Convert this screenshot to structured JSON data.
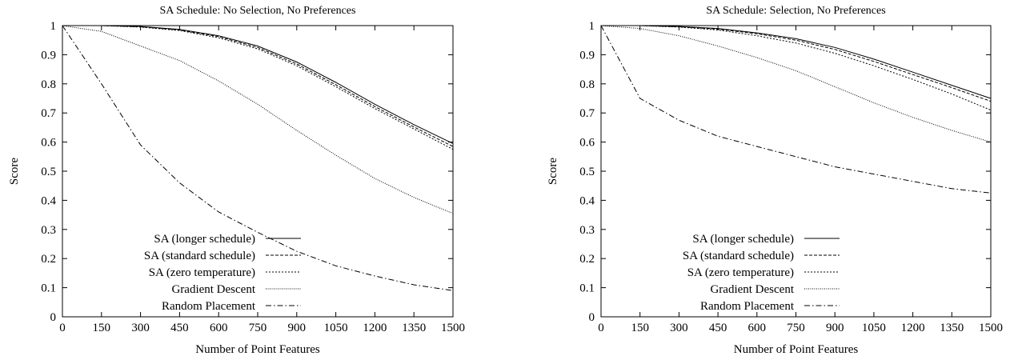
{
  "chart_data": [
    {
      "type": "line",
      "title": "SA Schedule:  No Selection, No Preferences",
      "xlabel": "Number of Point Features",
      "ylabel": "Score",
      "xlim": [
        0,
        1500
      ],
      "ylim": [
        0,
        1
      ],
      "xticks": [
        "0",
        "150",
        "300",
        "450",
        "600",
        "750",
        "900",
        "1050",
        "1200",
        "1350",
        "1500"
      ],
      "yticks": [
        "0",
        "0.1",
        "0.2",
        "0.3",
        "0.4",
        "0.5",
        "0.6",
        "0.7",
        "0.8",
        "0.9",
        "1"
      ],
      "grid": false,
      "legend_position": "bottom-left",
      "x": [
        0,
        150,
        300,
        450,
        600,
        750,
        900,
        1050,
        1200,
        1350,
        1500
      ],
      "series": [
        {
          "name": "SA (longer schedule)",
          "style": "solid",
          "values": [
            1.0,
            1.0,
            0.997,
            0.987,
            0.965,
            0.93,
            0.875,
            0.805,
            0.73,
            0.66,
            0.595
          ]
        },
        {
          "name": "SA (standard schedule)",
          "style": "dashed",
          "values": [
            1.0,
            1.0,
            0.996,
            0.985,
            0.962,
            0.925,
            0.868,
            0.797,
            0.722,
            0.652,
            0.585
          ]
        },
        {
          "name": "SA (zero temperature)",
          "style": "dotted",
          "values": [
            1.0,
            1.0,
            0.995,
            0.983,
            0.958,
            0.92,
            0.862,
            0.79,
            0.715,
            0.645,
            0.575
          ]
        },
        {
          "name": "Gradient Descent",
          "style": "finedot",
          "values": [
            1.0,
            0.98,
            0.93,
            0.88,
            0.81,
            0.73,
            0.64,
            0.555,
            0.475,
            0.41,
            0.355
          ]
        },
        {
          "name": "Random Placement",
          "style": "dashdot",
          "values": [
            1.0,
            0.8,
            0.59,
            0.46,
            0.36,
            0.29,
            0.225,
            0.175,
            0.14,
            0.11,
            0.09
          ]
        }
      ]
    },
    {
      "type": "line",
      "title": "SA Schedule:  Selection, No Preferences",
      "xlabel": "Number of Point Features",
      "ylabel": "Score",
      "xlim": [
        0,
        1500
      ],
      "ylim": [
        0,
        1
      ],
      "xticks": [
        "0",
        "150",
        "300",
        "450",
        "600",
        "750",
        "900",
        "1050",
        "1200",
        "1350",
        "1500"
      ],
      "yticks": [
        "0",
        "0.1",
        "0.2",
        "0.3",
        "0.4",
        "0.5",
        "0.6",
        "0.7",
        "0.8",
        "0.9",
        "1"
      ],
      "grid": false,
      "legend_position": "bottom-left",
      "x": [
        0,
        150,
        300,
        450,
        600,
        750,
        900,
        1050,
        1200,
        1350,
        1500
      ],
      "series": [
        {
          "name": "SA (longer schedule)",
          "style": "solid",
          "values": [
            1.0,
            1.0,
            0.997,
            0.99,
            0.975,
            0.955,
            0.925,
            0.885,
            0.84,
            0.795,
            0.75
          ]
        },
        {
          "name": "SA (standard schedule)",
          "style": "dashed",
          "values": [
            1.0,
            1.0,
            0.996,
            0.988,
            0.972,
            0.95,
            0.918,
            0.877,
            0.832,
            0.787,
            0.74
          ]
        },
        {
          "name": "SA (zero temperature)",
          "style": "dotted",
          "values": [
            1.0,
            1.0,
            0.995,
            0.985,
            0.965,
            0.94,
            0.905,
            0.862,
            0.815,
            0.765,
            0.71
          ]
        },
        {
          "name": "Gradient Descent",
          "style": "finedot",
          "values": [
            1.0,
            0.99,
            0.965,
            0.93,
            0.89,
            0.845,
            0.79,
            0.735,
            0.685,
            0.64,
            0.6
          ]
        },
        {
          "name": "Random Placement",
          "style": "dashdot",
          "values": [
            1.0,
            0.75,
            0.675,
            0.62,
            0.585,
            0.55,
            0.515,
            0.49,
            0.465,
            0.44,
            0.425
          ]
        }
      ]
    }
  ]
}
